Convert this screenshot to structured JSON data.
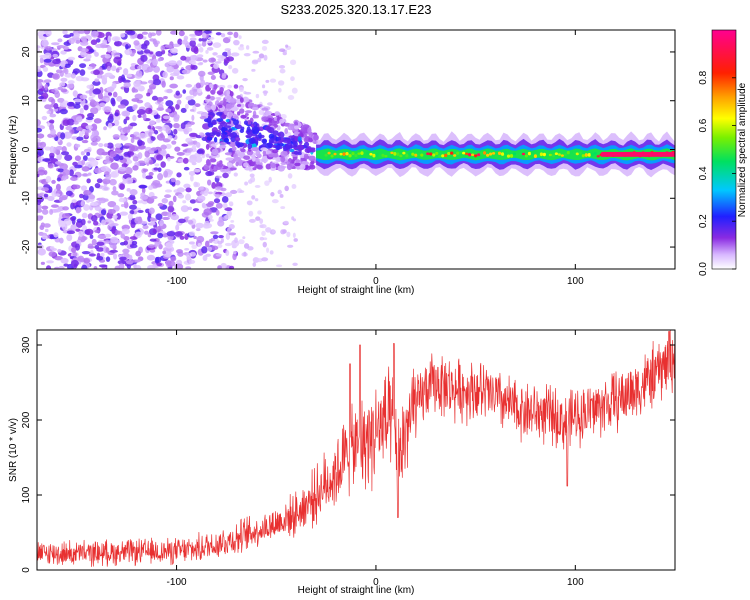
{
  "figure": {
    "title": "S233.2025.320.13.17.E23"
  },
  "chart_data": [
    {
      "type": "heatmap",
      "panel": "spectrogram",
      "xlabel": "Height of straight line (km)",
      "ylabel": "Frequency (Hz)",
      "xlim": [
        -170,
        150
      ],
      "ylim": [
        -24.5,
        24.5
      ],
      "xticks": [
        -100,
        0,
        100
      ],
      "xtick_labels": [
        "-100",
        "0",
        "100"
      ],
      "yticks": [
        -20,
        -10,
        0,
        10,
        20
      ],
      "ytick_labels": [
        "-20",
        "-10",
        "0",
        "10",
        "20"
      ],
      "colorbar": {
        "label": "Normalized spectral amplitude",
        "range": [
          0.0,
          1.0
        ],
        "ticks": [
          0.0,
          0.2,
          0.4,
          0.6,
          0.8
        ],
        "tick_labels": [
          "0.0",
          "0.2",
          "0.4",
          "0.6",
          "0.8"
        ],
        "colormap": "rainbow (white-violet-blue-cyan-green-yellow-red-magenta)"
      },
      "features": [
        {
          "description": "scattered noise blobs",
          "x_range": [
            -170,
            -85
          ],
          "y_range": [
            -24.5,
            24.5
          ],
          "amplitude": 0.1
        },
        {
          "description": "broad tilted streak",
          "x_range": [
            -85,
            -30
          ],
          "y_center_start": 5,
          "y_center_end": 0,
          "amplitude": 0.2
        },
        {
          "description": "narrow carrier line near 0 Hz",
          "x_range": [
            -30,
            150
          ],
          "y_center": -1,
          "amplitude_end": 0.95
        }
      ]
    },
    {
      "type": "line",
      "panel": "snr",
      "xlabel": "Height of straight line (km)",
      "ylabel": "SNR (10 * v/v)",
      "xlim": [
        -170,
        150
      ],
      "ylim": [
        0,
        320
      ],
      "xticks": [
        -100,
        0,
        100
      ],
      "xtick_labels": [
        "-100",
        "0",
        "100"
      ],
      "yticks": [
        0,
        100,
        200,
        300
      ],
      "ytick_labels": [
        "0",
        "100",
        "200",
        "300"
      ],
      "color": "#e83030",
      "series_envelope": {
        "x": [
          -170,
          -150,
          -120,
          -100,
          -90,
          -80,
          -70,
          -60,
          -50,
          -40,
          -30,
          -20,
          -15,
          -10,
          -5,
          0,
          5,
          10,
          12,
          15,
          20,
          25,
          30,
          40,
          50,
          60,
          70,
          80,
          90,
          95,
          100,
          110,
          120,
          130,
          140,
          150
        ],
        "y": [
          22,
          22,
          24,
          25,
          28,
          35,
          42,
          52,
          62,
          75,
          100,
          130,
          150,
          160,
          172,
          185,
          195,
          180,
          150,
          190,
          215,
          240,
          250,
          240,
          240,
          230,
          215,
          210,
          205,
          195,
          205,
          215,
          225,
          240,
          260,
          285
        ]
      },
      "spikes": [
        {
          "x": -13,
          "y": 275
        },
        {
          "x": -8,
          "y": 300
        },
        {
          "x": 9,
          "y": 302
        },
        {
          "x": 11,
          "y": 70
        },
        {
          "x": 96,
          "y": 112
        },
        {
          "x": 147,
          "y": 318
        }
      ]
    }
  ]
}
